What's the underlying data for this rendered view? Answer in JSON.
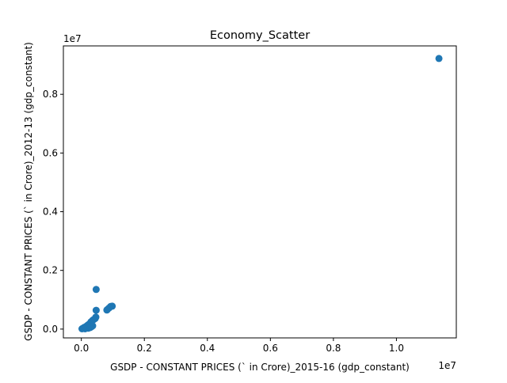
{
  "chart_data": {
    "type": "scatter",
    "title": "Economy_Scatter",
    "xlabel": "GSDP - CONSTANT PRICES (` in Crore)_2015-16 (gdp_constant)",
    "ylabel": "GSDP - CONSTANT PRICES (` in Crore)_2012-13 (gdp_constant)",
    "x_offset_label": "1e7",
    "y_offset_label": "1e7",
    "xlim": [
      -0.057,
      1.19
    ],
    "ylim": [
      -0.03,
      0.965
    ],
    "x_ticks": [
      0.0,
      0.2,
      0.4,
      0.6,
      0.8,
      1.0
    ],
    "x_tick_labels": [
      "0.0",
      "0.2",
      "0.4",
      "0.6",
      "0.8",
      "1.0"
    ],
    "y_ticks": [
      0.0,
      0.2,
      0.4,
      0.6,
      0.8
    ],
    "y_tick_labels": [
      "0.0",
      "0.2",
      "0.4",
      "0.6",
      "0.8"
    ],
    "marker_color": "#1f77b4",
    "grid": false,
    "points": [
      {
        "x": 1.135,
        "y": 0.922
      },
      {
        "x": 0.047,
        "y": 0.135
      },
      {
        "x": 0.098,
        "y": 0.078
      },
      {
        "x": 0.093,
        "y": 0.077
      },
      {
        "x": 0.088,
        "y": 0.072
      },
      {
        "x": 0.083,
        "y": 0.067
      },
      {
        "x": 0.081,
        "y": 0.065
      },
      {
        "x": 0.047,
        "y": 0.064
      },
      {
        "x": 0.046,
        "y": 0.041
      },
      {
        "x": 0.044,
        "y": 0.036
      },
      {
        "x": 0.04,
        "y": 0.033
      },
      {
        "x": 0.036,
        "y": 0.03
      },
      {
        "x": 0.031,
        "y": 0.025
      },
      {
        "x": 0.028,
        "y": 0.02
      },
      {
        "x": 0.025,
        "y": 0.017
      },
      {
        "x": 0.021,
        "y": 0.014
      },
      {
        "x": 0.018,
        "y": 0.011
      },
      {
        "x": 0.014,
        "y": 0.008
      },
      {
        "x": 0.01,
        "y": 0.006
      },
      {
        "x": 0.007,
        "y": 0.004
      },
      {
        "x": 0.004,
        "y": 0.002
      },
      {
        "x": 0.002,
        "y": 0.001
      },
      {
        "x": 0.028,
        "y": 0.005
      },
      {
        "x": 0.032,
        "y": 0.008
      },
      {
        "x": 0.036,
        "y": 0.011
      },
      {
        "x": 0.022,
        "y": 0.003
      },
      {
        "x": 0.012,
        "y": 0.001
      },
      {
        "x": 0.006,
        "y": 0.003
      }
    ]
  }
}
